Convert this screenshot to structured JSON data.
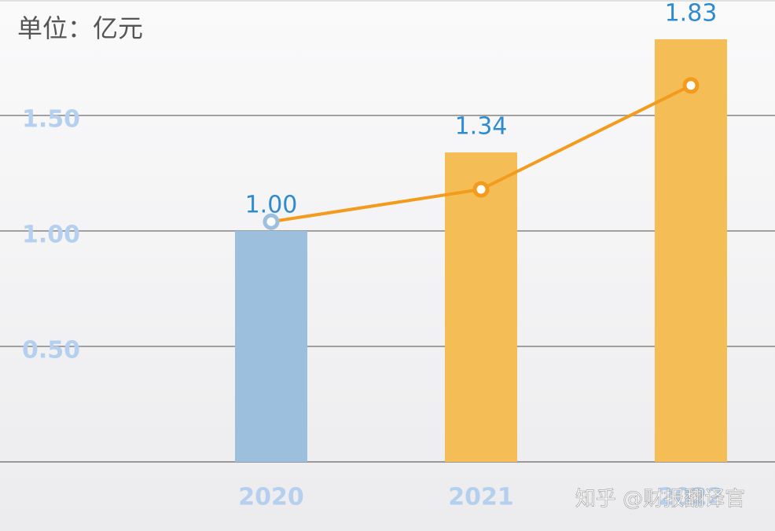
{
  "chart_data": {
    "type": "bar",
    "unit": "单位：亿元",
    "watermark": "知乎 @财报翻译官",
    "categories": [
      "2020",
      "2021",
      "2022"
    ],
    "values": [
      1,
      1.34,
      1.83
    ],
    "value_labels": [
      "1.00",
      "1.34",
      "1.83"
    ],
    "colors": [
      "#9bbfdc",
      "#f5bd55",
      "#f5bd55"
    ],
    "line": {
      "color": "#f29b1c",
      "values": [
        1.04,
        1.18,
        1.63
      ]
    },
    "ylim": [
      0,
      2
    ],
    "yticks": [
      {
        "value": 0.5,
        "label": "0.50"
      },
      {
        "value": 1,
        "label": "1.00"
      },
      {
        "value": 1.5,
        "label": "1.50"
      }
    ],
    "grid": true
  }
}
